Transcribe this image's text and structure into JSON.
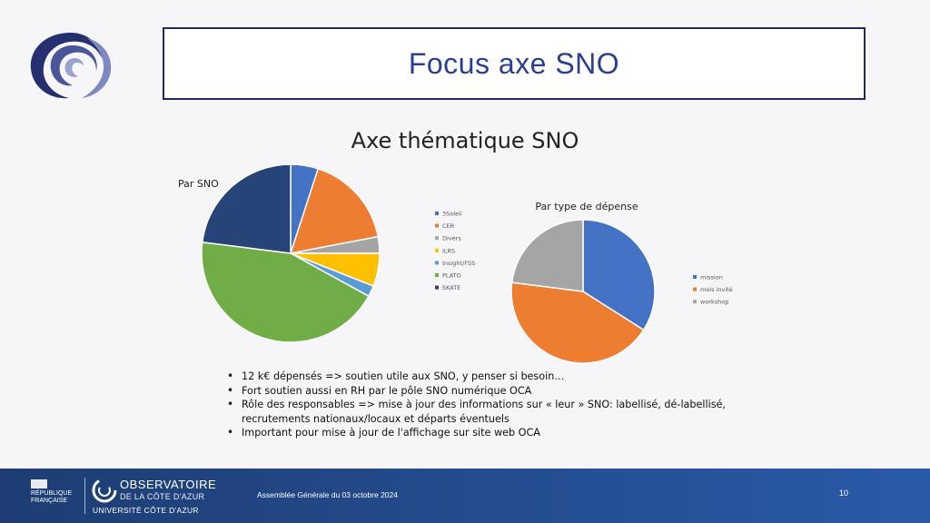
{
  "slide": {
    "title": "Focus axe SNO"
  },
  "figure": {
    "title": "Axe thématique SNO"
  },
  "chart_data": [
    {
      "type": "pie",
      "title": "Par SNO",
      "categories": [
        "3Soleil",
        "CER",
        "Divers",
        "ILRS",
        "Insight/FSS",
        "PLATO",
        "SKATE"
      ],
      "values": [
        5,
        17,
        3,
        6,
        2,
        44,
        23
      ],
      "colors": [
        "#4472c4",
        "#ed7d31",
        "#a5a5a5",
        "#ffc000",
        "#5b9bd5",
        "#70ad47",
        "#264478"
      ],
      "legend_position": "right"
    },
    {
      "type": "pie",
      "title": "Par type de dépense",
      "categories": [
        "mission",
        "mois invité",
        "workshop"
      ],
      "values": [
        34,
        43,
        23
      ],
      "colors": [
        "#4472c4",
        "#ed7d31",
        "#a5a5a5"
      ],
      "legend_position": "right"
    }
  ],
  "bullets": [
    "12 k€ dépensés => soutien utile aux SNO, y penser si besoin…",
    "Fort soutien aussi en RH par le pôle SNO numérique OCA",
    "Rôle des responsables => mise à jour des informations sur « leur » SNO: labellisé, dé-labellisé, recrutements nationaux/locaux et départs éventuels",
    "Important pour mise à jour de l'affichage sur site web OCA"
  ],
  "footer": {
    "republique_line1": "RÉPUBLIQUE",
    "republique_line2": "FRANÇAISE",
    "oca_name": "OBSERVATOIRE",
    "oca_sub": "DE LA CÔTE D'AZUR",
    "university": "UNIVERSITÉ CÔTE D'AZUR",
    "event": "Assemblée Générale du 03 octobre 2024",
    "page": "10"
  },
  "colors": {
    "title_text": "#2a3f8f",
    "title_border": "#1f2a5b",
    "footer_blue": "#1d3d73"
  },
  "icons": [
    "oca-spiral-logo",
    "marianne-icon",
    "oca-footer-logo"
  ]
}
